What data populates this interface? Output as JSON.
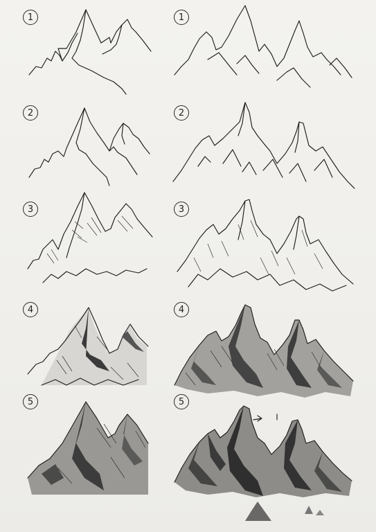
{
  "steps": [
    {
      "label": "1"
    },
    {
      "label": "1"
    },
    {
      "label": "2"
    },
    {
      "label": "2"
    },
    {
      "label": "3"
    },
    {
      "label": "3"
    },
    {
      "label": "4"
    },
    {
      "label": "4"
    },
    {
      "label": "5"
    },
    {
      "label": "5"
    }
  ],
  "colors": {
    "paper": "#f1f0ec",
    "ink": "#1e1e1e",
    "shade_dark": "#3a3a3a",
    "shade_mid": "#8a8a8a"
  }
}
